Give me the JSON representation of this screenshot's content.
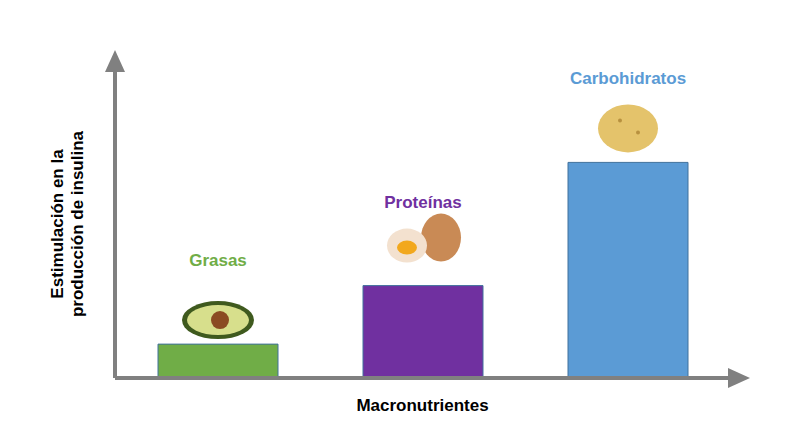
{
  "chart_data": {
    "type": "bar",
    "categories": [
      "Grasas",
      "Proteínas",
      "Carbohidratos"
    ],
    "values": [
      11,
      30,
      70
    ],
    "colors": [
      "#70ad47",
      "#7030a0",
      "#5b9bd5"
    ],
    "x_label": "Macronutrientes",
    "y_label": "Estimulación en la producción de insulina",
    "ylim": [
      0,
      100
    ],
    "tick_labels": false,
    "grid": false
  }
}
